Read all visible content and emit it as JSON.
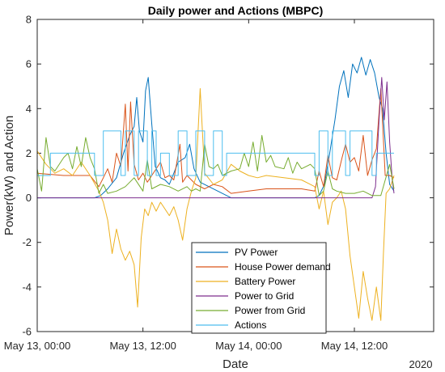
{
  "chart_data": {
    "type": "line",
    "title": "Daily power and Actions (MBPC)",
    "xlabel": "Date",
    "ylabel": "Power(kW) and Action",
    "x_secondary_label": "2020",
    "x_unit": "hours since May 13, 00:00",
    "xlim": [
      0,
      45
    ],
    "ylim": [
      -6,
      8
    ],
    "yticks": [
      -6,
      -4,
      -2,
      0,
      2,
      4,
      6,
      8
    ],
    "xticks": [
      {
        "x": 0,
        "label": "May 13, 00:00"
      },
      {
        "x": 12,
        "label": "May 13, 12:00"
      },
      {
        "x": 24,
        "label": "May 14, 00:00"
      },
      {
        "x": 36,
        "label": "May 14, 12:00"
      }
    ],
    "legend_position": "bottom-center",
    "grid": false,
    "series": [
      {
        "name": "PV Power",
        "color": "#0072BD",
        "points": [
          [
            0,
            0
          ],
          [
            6.5,
            0
          ],
          [
            7.2,
            0.1
          ],
          [
            8,
            0.4
          ],
          [
            9,
            0.9
          ],
          [
            9.8,
            2.0
          ],
          [
            10.5,
            2.8
          ],
          [
            11,
            3.2
          ],
          [
            11.3,
            4.5
          ],
          [
            11.6,
            3.0
          ],
          [
            12,
            2.5
          ],
          [
            12.3,
            4.8
          ],
          [
            12.6,
            5.4
          ],
          [
            13,
            3.3
          ],
          [
            13.4,
            1.4
          ],
          [
            14,
            0.9
          ],
          [
            14.5,
            0.8
          ],
          [
            15,
            0.6
          ],
          [
            16,
            1.6
          ],
          [
            16.8,
            1.8
          ],
          [
            17.3,
            2.4
          ],
          [
            17.8,
            1.3
          ],
          [
            18.5,
            0.7
          ],
          [
            19.5,
            0.5
          ],
          [
            20.5,
            0.3
          ],
          [
            21.5,
            0.1
          ],
          [
            22,
            0
          ],
          [
            31.5,
            0
          ],
          [
            32,
            0.1
          ],
          [
            32.6,
            0.6
          ],
          [
            33.2,
            2.0
          ],
          [
            33.8,
            3.5
          ],
          [
            34.3,
            5.0
          ],
          [
            34.8,
            5.7
          ],
          [
            35.3,
            4.5
          ],
          [
            35.8,
            6.0
          ],
          [
            36.3,
            5.6
          ],
          [
            36.8,
            6.3
          ],
          [
            37.3,
            5.5
          ],
          [
            37.8,
            6.2
          ],
          [
            38.3,
            5.6
          ],
          [
            38.8,
            4.5
          ],
          [
            39.2,
            4.0
          ],
          [
            39.6,
            2.0
          ],
          [
            40,
            0.6
          ],
          [
            40.5,
            0.3
          ]
        ]
      },
      {
        "name": "House Power demand",
        "color": "#D95319",
        "points": [
          [
            0,
            1.1
          ],
          [
            3,
            1.0
          ],
          [
            6,
            1.0
          ],
          [
            7,
            0.5
          ],
          [
            7.5,
            0.9
          ],
          [
            8,
            1.3
          ],
          [
            8.5,
            0.7
          ],
          [
            9,
            2.0
          ],
          [
            9.5,
            1.4
          ],
          [
            10,
            4.2
          ],
          [
            10.3,
            1.2
          ],
          [
            10.6,
            4.3
          ],
          [
            11,
            1.5
          ],
          [
            11.5,
            0.8
          ],
          [
            12,
            1.1
          ],
          [
            12.5,
            0.7
          ],
          [
            13,
            1.0
          ],
          [
            14,
            1.6
          ],
          [
            14.5,
            0.9
          ],
          [
            15,
            1.0
          ],
          [
            15.5,
            0.8
          ],
          [
            16.2,
            2.4
          ],
          [
            16.5,
            0.7
          ],
          [
            17,
            1.0
          ],
          [
            18,
            0.6
          ],
          [
            19,
            0.4
          ],
          [
            20,
            0.6
          ],
          [
            21,
            0.5
          ],
          [
            22,
            0.2
          ],
          [
            24,
            0.3
          ],
          [
            26,
            0.4
          ],
          [
            28,
            0.4
          ],
          [
            30,
            0.4
          ],
          [
            31.5,
            0.3
          ],
          [
            32,
            1.2
          ],
          [
            32.5,
            0.5
          ],
          [
            33,
            1.9
          ],
          [
            33.5,
            0.9
          ],
          [
            34,
            0.8
          ],
          [
            34.6,
            1.8
          ],
          [
            35,
            2.4
          ],
          [
            35.5,
            1.6
          ],
          [
            36,
            1.8
          ],
          [
            36.5,
            1.2
          ],
          [
            37,
            2.8
          ],
          [
            37.5,
            1.0
          ],
          [
            38,
            1.7
          ],
          [
            38.5,
            2.2
          ],
          [
            39,
            4.9
          ],
          [
            39.5,
            1.0
          ],
          [
            40,
            1.0
          ],
          [
            40.5,
            0.9
          ]
        ]
      },
      {
        "name": "Battery Power",
        "color": "#EDB120",
        "points": [
          [
            0,
            2.1
          ],
          [
            1,
            1.5
          ],
          [
            2,
            1.1
          ],
          [
            3,
            1.3
          ],
          [
            4,
            1.0
          ],
          [
            5,
            1.6
          ],
          [
            6,
            1.0
          ],
          [
            7,
            0.3
          ],
          [
            7.5,
            -0.2
          ],
          [
            8,
            -1.0
          ],
          [
            8.5,
            -2.5
          ],
          [
            9,
            -1.4
          ],
          [
            9.5,
            -2.3
          ],
          [
            10,
            -2.8
          ],
          [
            10.5,
            -2.4
          ],
          [
            11,
            -3.0
          ],
          [
            11.4,
            -4.9
          ],
          [
            11.8,
            -1.8
          ],
          [
            12.2,
            -0.5
          ],
          [
            12.6,
            -0.8
          ],
          [
            13,
            -0.2
          ],
          [
            13.5,
            -0.6
          ],
          [
            14,
            -0.2
          ],
          [
            15,
            -0.8
          ],
          [
            15.5,
            -0.4
          ],
          [
            16,
            -1.0
          ],
          [
            16.5,
            -1.9
          ],
          [
            17,
            -0.5
          ],
          [
            17.5,
            0.3
          ],
          [
            18,
            0.9
          ],
          [
            18.5,
            4.9
          ],
          [
            19,
            1.1
          ],
          [
            20,
            0.6
          ],
          [
            21,
            0.8
          ],
          [
            22,
            1.5
          ],
          [
            23,
            1.2
          ],
          [
            24,
            1.0
          ],
          [
            25,
            0.9
          ],
          [
            26,
            1.0
          ],
          [
            28,
            0.9
          ],
          [
            30,
            0.8
          ],
          [
            31.5,
            0.5
          ],
          [
            32,
            -0.5
          ],
          [
            32.5,
            0.3
          ],
          [
            33,
            -1.2
          ],
          [
            33.5,
            -0.2
          ],
          [
            34,
            0.0
          ],
          [
            34.5,
            0.3
          ],
          [
            35,
            -0.5
          ],
          [
            35.5,
            -2.6
          ],
          [
            36,
            -4.0
          ],
          [
            36.5,
            -5.4
          ],
          [
            37,
            -3.3
          ],
          [
            37.5,
            -4.5
          ],
          [
            38,
            -5.5
          ],
          [
            38.5,
            -4.0
          ],
          [
            39,
            -5.5
          ],
          [
            39.3,
            -2.5
          ],
          [
            39.6,
            0.2
          ],
          [
            40,
            0.4
          ],
          [
            40.5,
            1.0
          ]
        ]
      },
      {
        "name": "Power to Grid",
        "color": "#7E2F8E",
        "points": [
          [
            0,
            0
          ],
          [
            38,
            0
          ],
          [
            38.4,
            0.5
          ],
          [
            38.8,
            3.5
          ],
          [
            39.1,
            5.4
          ],
          [
            39.4,
            3.5
          ],
          [
            39.7,
            5.2
          ],
          [
            40,
            2.5
          ],
          [
            40.3,
            0.8
          ],
          [
            40.5,
            0.2
          ]
        ]
      },
      {
        "name": "Power from Grid",
        "color": "#77AC30",
        "points": [
          [
            0,
            1.3
          ],
          [
            0.5,
            0.3
          ],
          [
            1,
            2.7
          ],
          [
            1.5,
            1.4
          ],
          [
            2,
            1.2
          ],
          [
            3,
            1.8
          ],
          [
            3.5,
            2.0
          ],
          [
            4,
            1.3
          ],
          [
            4.5,
            2.3
          ],
          [
            5,
            1.4
          ],
          [
            5.5,
            2.7
          ],
          [
            6,
            1.8
          ],
          [
            6.5,
            1.3
          ],
          [
            7,
            0.2
          ],
          [
            7.5,
            0.6
          ],
          [
            8,
            0.2
          ],
          [
            9,
            0.3
          ],
          [
            10,
            0.5
          ],
          [
            11,
            0.9
          ],
          [
            12,
            0.3
          ],
          [
            12.5,
            1.7
          ],
          [
            13,
            0.4
          ],
          [
            14,
            0.6
          ],
          [
            15,
            0.5
          ],
          [
            16,
            0.3
          ],
          [
            17,
            0.5
          ],
          [
            17.5,
            0.3
          ],
          [
            18,
            0.4
          ],
          [
            18.5,
            0.3
          ],
          [
            19,
            2.4
          ],
          [
            19.5,
            1.4
          ],
          [
            20,
            1.3
          ],
          [
            20.5,
            1.5
          ],
          [
            21,
            1.0
          ],
          [
            22,
            1.2
          ],
          [
            23,
            1.3
          ],
          [
            23.5,
            2.0
          ],
          [
            24,
            1.4
          ],
          [
            24.5,
            2.5
          ],
          [
            25,
            1.2
          ],
          [
            25.5,
            2.8
          ],
          [
            26,
            1.6
          ],
          [
            26.5,
            1.9
          ],
          [
            27,
            1.4
          ],
          [
            28,
            1.3
          ],
          [
            28.5,
            1.8
          ],
          [
            29,
            1.1
          ],
          [
            29.5,
            1.6
          ],
          [
            30,
            1.3
          ],
          [
            31,
            1.5
          ],
          [
            31.5,
            1.3
          ],
          [
            32,
            0.1
          ],
          [
            32.5,
            0.3
          ],
          [
            33,
            1.2
          ],
          [
            33.5,
            0.4
          ],
          [
            34,
            0.3
          ],
          [
            35,
            0.2
          ],
          [
            36,
            0.2
          ],
          [
            37,
            0.3
          ],
          [
            38,
            0.1
          ],
          [
            39,
            0.1
          ],
          [
            40,
            1.5
          ],
          [
            40.5,
            0.4
          ]
        ]
      },
      {
        "name": "Actions",
        "color": "#4DBEEE",
        "step": true,
        "points": [
          [
            0,
            1
          ],
          [
            1.5,
            1
          ],
          [
            1.5,
            2
          ],
          [
            6.5,
            2
          ],
          [
            6.5,
            1
          ],
          [
            7.5,
            1
          ],
          [
            7.5,
            3
          ],
          [
            9.5,
            3
          ],
          [
            9.5,
            1
          ],
          [
            10,
            1
          ],
          [
            10,
            3
          ],
          [
            11,
            3
          ],
          [
            11,
            1
          ],
          [
            11.5,
            1
          ],
          [
            11.5,
            3
          ],
          [
            12.5,
            3
          ],
          [
            12.5,
            1
          ],
          [
            13,
            1
          ],
          [
            13,
            3
          ],
          [
            13.5,
            3
          ],
          [
            13.5,
            1
          ],
          [
            14,
            1
          ],
          [
            14,
            2
          ],
          [
            15,
            2
          ],
          [
            15,
            1
          ],
          [
            16,
            1
          ],
          [
            16,
            3
          ],
          [
            17,
            3
          ],
          [
            17,
            1
          ],
          [
            18,
            1
          ],
          [
            18,
            3
          ],
          [
            19,
            3
          ],
          [
            19,
            1
          ],
          [
            20,
            1
          ],
          [
            20,
            3
          ],
          [
            21,
            3
          ],
          [
            21,
            1
          ],
          [
            21.5,
            1
          ],
          [
            21.5,
            2
          ],
          [
            31.5,
            2
          ],
          [
            31.5,
            1
          ],
          [
            32,
            1
          ],
          [
            32,
            3
          ],
          [
            33,
            3
          ],
          [
            33,
            1
          ],
          [
            33.5,
            1
          ],
          [
            33.5,
            3
          ],
          [
            35,
            3
          ],
          [
            35,
            1
          ],
          [
            35.5,
            1
          ],
          [
            35.5,
            3
          ],
          [
            38,
            3
          ],
          [
            38,
            1
          ],
          [
            38.5,
            1
          ],
          [
            38.5,
            2
          ],
          [
            40.5,
            2
          ]
        ]
      }
    ]
  }
}
